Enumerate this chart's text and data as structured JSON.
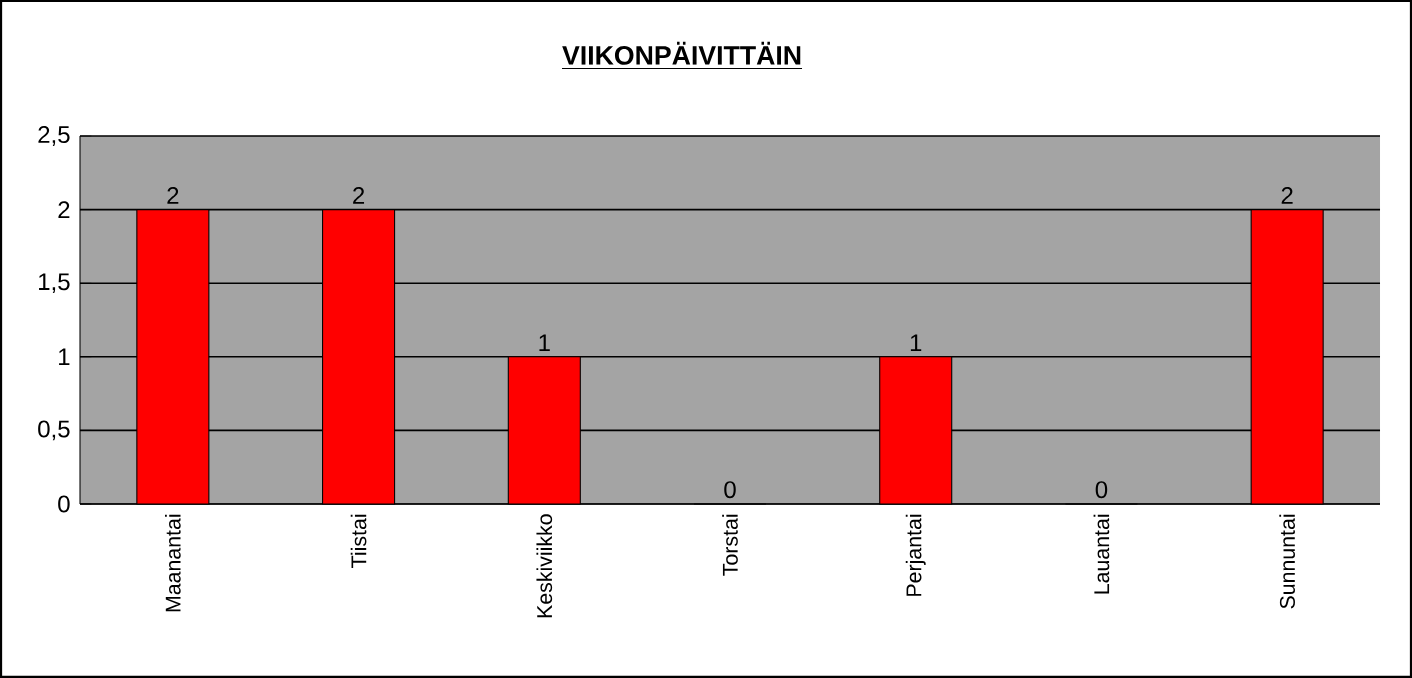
{
  "chart_data": {
    "type": "bar",
    "title": "VIIKONPÄIVITTÄIN",
    "categories": [
      "Maanantai",
      "Tiistai",
      "Keskiviikko",
      "Torstai",
      "Perjantai",
      "Lauantai",
      "Sunnuntai"
    ],
    "values": [
      2,
      2,
      1,
      0,
      1,
      0,
      2
    ],
    "color": "#ff0000",
    "ylim": [
      0,
      2.5
    ],
    "yticks": [
      0,
      {
        "value": 0.5,
        "label": "0,5"
      },
      1,
      {
        "value": 1.5,
        "label": "1,5"
      },
      2,
      {
        "value": 2.5,
        "label": "2,5"
      }
    ],
    "grid": "y",
    "data_labels": true
  }
}
